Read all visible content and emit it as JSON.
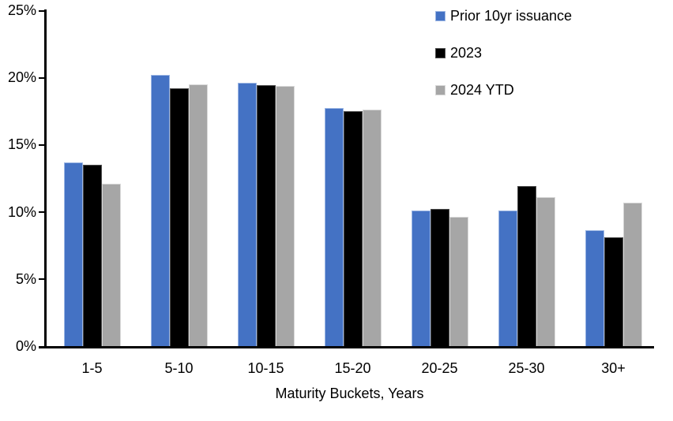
{
  "chart_data": {
    "type": "bar",
    "title": "",
    "xlabel": "Maturity Buckets, Years",
    "ylabel": "",
    "categories": [
      "1-5",
      "5-10",
      "10-15",
      "15-20",
      "20-25",
      "25-30",
      "30+"
    ],
    "series": [
      {
        "name": "Prior 10yr issuance",
        "color": "#4472C4",
        "border_color": "#9DB7E4",
        "values": [
          13.7,
          20.2,
          19.6,
          17.7,
          10.1,
          10.1,
          8.6
        ]
      },
      {
        "name": "2023",
        "color": "#000000",
        "border_color": "#4d4d4d",
        "values": [
          13.5,
          19.2,
          19.4,
          17.5,
          10.2,
          11.9,
          8.1
        ]
      },
      {
        "name": "2024 YTD",
        "color": "#A6A6A6",
        "border_color": "#D9D9D9",
        "values": [
          12.1,
          19.5,
          19.35,
          17.6,
          9.6,
          11.1,
          10.7
        ]
      }
    ],
    "ylim": [
      0,
      25
    ],
    "ytick_step": 5,
    "ytick_labels": [
      "0%",
      "5%",
      "10%",
      "15%",
      "20%",
      "25%"
    ],
    "grid": false,
    "legend_position": "top-right",
    "axis_color": "#000000"
  }
}
